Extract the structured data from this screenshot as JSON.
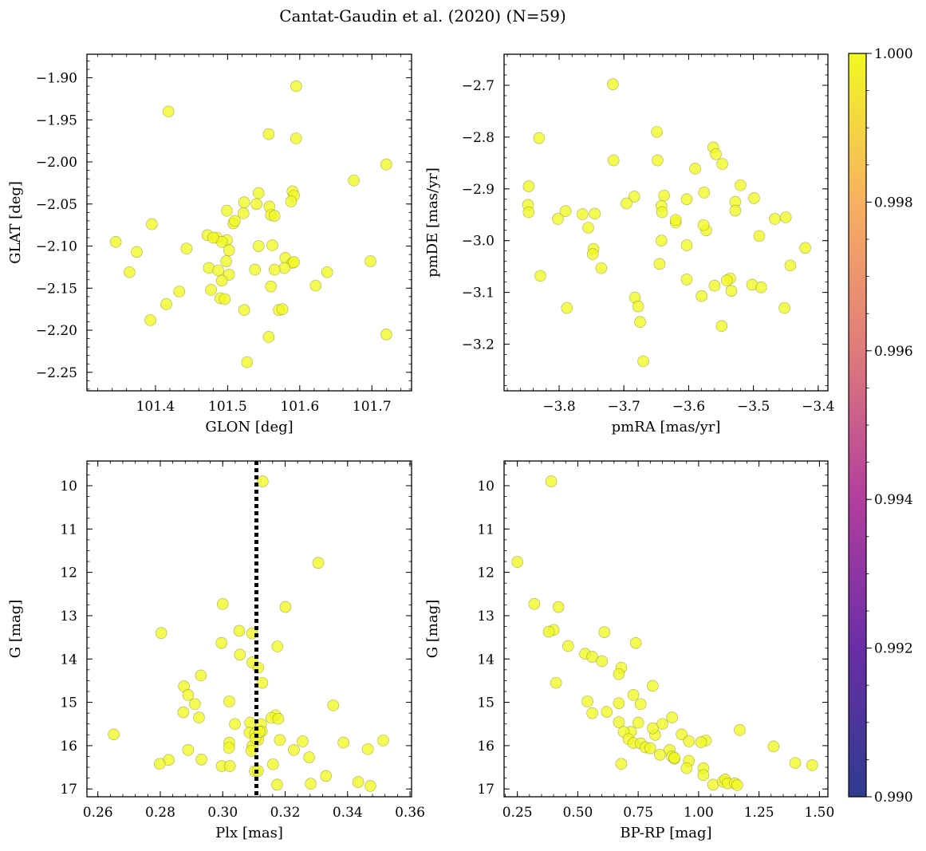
{
  "figure": {
    "title": "Cantat-Gaudin et al. (2020) (N=59)",
    "colorbar": {
      "min": 0.99,
      "max": 1.0,
      "ticks": [
        "0.990",
        "0.992",
        "0.994",
        "0.996",
        "0.998",
        "1.000"
      ],
      "tick_values": [
        0.99,
        0.992,
        0.994,
        0.996,
        0.998,
        1.0
      ],
      "colormap": "plasma"
    },
    "marker_color": "#f0f921"
  },
  "chart_data": [
    {
      "type": "scatter",
      "xlabel": "GLON [deg]",
      "ylabel": "GLAT [deg]",
      "xlim": [
        101.305,
        101.755
      ],
      "ylim": [
        -2.272,
        -1.872
      ],
      "inverted_y": false,
      "xticks": [
        101.4,
        101.5,
        101.6,
        101.7
      ],
      "xtick_labels": [
        "101.4",
        "101.5",
        "101.6",
        "101.7"
      ],
      "yticks": [
        -1.9,
        -1.95,
        -2.0,
        -2.05,
        -2.1,
        -2.15,
        -2.2,
        -2.25
      ],
      "ytick_labels": [
        "−1.90",
        "−1.95",
        "−2.00",
        "−2.05",
        "−2.10",
        "−2.15",
        "−2.20",
        "−2.25"
      ],
      "x": [
        101.595,
        101.418,
        101.557,
        101.595,
        101.675,
        101.72,
        101.59,
        101.592,
        101.543,
        101.523,
        101.558,
        101.56,
        101.588,
        101.565,
        101.499,
        101.522,
        101.508,
        101.395,
        101.499,
        101.58,
        101.59,
        101.374,
        101.472,
        101.485,
        101.502,
        101.543,
        101.562,
        101.443,
        101.579,
        101.592,
        101.698,
        101.498,
        101.474,
        101.364,
        101.487,
        101.502,
        101.538,
        101.565,
        101.571,
        101.638,
        101.492,
        101.56,
        101.622,
        101.477,
        101.433,
        101.49,
        101.496,
        101.415,
        101.576,
        101.523,
        101.393,
        101.72,
        101.557,
        101.527,
        101.345,
        101.492,
        101.48,
        101.51,
        101.54
      ],
      "y": [
        -1.91,
        -1.94,
        -1.967,
        -1.972,
        -2.022,
        -2.003,
        -2.035,
        -2.04,
        -2.037,
        -2.048,
        -2.053,
        -2.063,
        -2.047,
        -2.064,
        -2.058,
        -2.061,
        -2.073,
        -2.074,
        -2.093,
        -2.114,
        -2.12,
        -2.107,
        -2.087,
        -2.09,
        -2.105,
        -2.1,
        -2.099,
        -2.103,
        -2.126,
        -2.119,
        -2.118,
        -2.118,
        -2.126,
        -2.131,
        -2.129,
        -2.134,
        -2.128,
        -2.128,
        -2.176,
        -2.131,
        -2.141,
        -2.148,
        -2.147,
        -2.152,
        -2.154,
        -2.162,
        -2.163,
        -2.169,
        -2.175,
        -2.176,
        -2.188,
        -2.205,
        -2.208,
        -2.238,
        -2.095,
        -2.095,
        -2.09,
        -2.07,
        -2.05
      ]
    },
    {
      "type": "scatter",
      "xlabel": "pmRA [mas/yr]",
      "ylabel": "pmDE [mas/yr]",
      "xlim": [
        -3.885,
        -3.385
      ],
      "ylim": [
        -3.29,
        -2.64
      ],
      "inverted_y": false,
      "xticks": [
        -3.8,
        -3.7,
        -3.6,
        -3.5,
        -3.4
      ],
      "xtick_labels": [
        "−3.8",
        "−3.7",
        "−3.6",
        "−3.5",
        "−3.4"
      ],
      "yticks": [
        -2.7,
        -2.8,
        -2.9,
        -3.0,
        -3.1,
        -3.2
      ],
      "ytick_labels": [
        "−2.7",
        "−2.8",
        "−2.9",
        "−3.0",
        "−3.1",
        "−3.2"
      ],
      "x": [
        -3.717,
        -3.831,
        -3.649,
        -3.562,
        -3.558,
        -3.716,
        -3.648,
        -3.548,
        -3.52,
        -3.847,
        -3.684,
        -3.638,
        -3.576,
        -3.528,
        -3.499,
        -3.59,
        -3.848,
        -3.696,
        -3.642,
        -3.79,
        -3.847,
        -3.603,
        -3.528,
        -3.467,
        -3.573,
        -3.45,
        -3.641,
        -3.802,
        -3.755,
        -3.745,
        -3.62,
        -3.764,
        -3.642,
        -3.577,
        -3.491,
        -3.603,
        -3.747,
        -3.748,
        -3.735,
        -3.42,
        -3.443,
        -3.645,
        -3.829,
        -3.536,
        -3.603,
        -3.541,
        -3.56,
        -3.502,
        -3.488,
        -3.534,
        -3.58,
        -3.683,
        -3.788,
        -3.452,
        -3.678,
        -3.549,
        -3.675,
        -3.67,
        -3.62
      ],
      "y": [
        -2.698,
        -2.802,
        -2.79,
        -2.82,
        -2.833,
        -2.845,
        -2.845,
        -2.852,
        -2.893,
        -2.895,
        -2.915,
        -2.913,
        -2.907,
        -2.925,
        -2.918,
        -2.861,
        -2.931,
        -2.928,
        -2.933,
        -2.943,
        -2.945,
        -2.92,
        -2.942,
        -2.958,
        -2.98,
        -2.955,
        -2.945,
        -2.958,
        -2.975,
        -2.948,
        -2.965,
        -2.949,
        -3.0,
        -2.97,
        -2.991,
        -3.009,
        -3.016,
        -3.026,
        -3.053,
        -3.014,
        -3.048,
        -3.045,
        -3.068,
        -3.073,
        -3.075,
        -3.077,
        -3.087,
        -3.085,
        -3.09,
        -3.097,
        -3.107,
        -3.11,
        -3.13,
        -3.13,
        -3.127,
        -3.165,
        -3.157,
        -3.233,
        -2.96
      ]
    },
    {
      "type": "scatter",
      "xlabel": "Plx [mas]",
      "ylabel": "G [mag]",
      "xlim": [
        0.2565,
        0.3605
      ],
      "ylim": [
        17.18,
        9.43
      ],
      "inverted_y": true,
      "vline": {
        "x": 0.3108,
        "style": "dotted"
      },
      "xticks": [
        0.26,
        0.28,
        0.3,
        0.32,
        0.34,
        0.36
      ],
      "xtick_labels": [
        "0.26",
        "0.28",
        "0.30",
        "0.32",
        "0.34",
        "0.36"
      ],
      "yticks": [
        10,
        11,
        12,
        13,
        14,
        15,
        16,
        17
      ],
      "ytick_labels": [
        "10",
        "11",
        "12",
        "13",
        "14",
        "15",
        "16",
        "17"
      ],
      "x": [
        0.3128,
        0.3306,
        0.3,
        0.3201,
        0.2803,
        0.3053,
        0.3094,
        0.2996,
        0.3175,
        0.3055,
        0.3095,
        0.3114,
        0.3127,
        0.293,
        0.2876,
        0.3021,
        0.3354,
        0.2889,
        0.2911,
        0.2874,
        0.3169,
        0.2924,
        0.3088,
        0.3123,
        0.3039,
        0.3156,
        0.3178,
        0.3086,
        0.3125,
        0.3021,
        0.3104,
        0.3095,
        0.3183,
        0.3256,
        0.3114,
        0.3387,
        0.3514,
        0.2651,
        0.2889,
        0.302,
        0.3228,
        0.2997,
        0.3465,
        0.3277,
        0.2827,
        0.3103,
        0.2932,
        0.3092,
        0.2798,
        0.3023,
        0.3161,
        0.3113,
        0.3331,
        0.3282,
        0.3434,
        0.3174,
        0.3473,
        0.3105,
        0.3118
      ],
      "y": [
        9.9,
        11.78,
        12.73,
        12.8,
        13.4,
        13.35,
        13.41,
        13.63,
        13.71,
        13.9,
        14.08,
        14.2,
        14.55,
        14.38,
        14.63,
        14.98,
        15.07,
        14.83,
        15.04,
        15.23,
        15.3,
        15.35,
        15.47,
        15.5,
        15.5,
        15.36,
        15.38,
        15.7,
        15.67,
        15.93,
        15.72,
        16.01,
        15.87,
        15.9,
        15.86,
        15.93,
        15.88,
        15.74,
        16.1,
        16.05,
        16.1,
        16.47,
        16.08,
        16.27,
        16.33,
        16.59,
        16.32,
        16.12,
        16.42,
        16.47,
        16.43,
        16.58,
        16.7,
        16.88,
        16.84,
        16.9,
        16.93,
        15.83,
        15.68
      ]
    },
    {
      "type": "scatter",
      "xlabel": "BP-RP [mag]",
      "ylabel": "G [mag]",
      "xlim": [
        0.195,
        1.535
      ],
      "ylim": [
        17.18,
        9.43
      ],
      "inverted_y": true,
      "xticks": [
        0.25,
        0.5,
        0.75,
        1.0,
        1.25,
        1.5
      ],
      "xtick_labels": [
        "0.25",
        "0.50",
        "0.75",
        "1.00",
        "1.25",
        "1.50"
      ],
      "yticks": [
        10,
        11,
        12,
        13,
        14,
        15,
        16,
        17
      ],
      "ytick_labels": [
        "10",
        "11",
        "12",
        "13",
        "14",
        "15",
        "16",
        "17"
      ],
      "x": [
        0.39,
        0.25,
        0.32,
        0.42,
        0.4,
        0.38,
        0.61,
        0.74,
        0.46,
        0.53,
        0.56,
        0.6,
        0.68,
        0.67,
        0.41,
        0.81,
        0.54,
        0.73,
        0.67,
        0.76,
        0.56,
        0.62,
        0.89,
        0.85,
        0.75,
        0.67,
        0.82,
        0.72,
        0.69,
        0.81,
        0.93,
        0.96,
        0.71,
        1.03,
        1.01,
        0.73,
        0.76,
        0.78,
        0.8,
        1.17,
        1.31,
        0.84,
        0.88,
        0.89,
        0.9,
        0.96,
        1.02,
        0.95,
        1.4,
        1.47,
        1.06,
        1.02,
        1.1,
        1.11,
        1.12,
        1.15,
        1.16,
        0.68,
        0.9
      ],
      "y": [
        9.9,
        11.76,
        12.73,
        12.8,
        13.33,
        13.37,
        13.38,
        13.63,
        13.7,
        13.88,
        13.95,
        14.05,
        14.2,
        14.35,
        14.55,
        14.62,
        14.98,
        14.83,
        15.02,
        15.04,
        15.25,
        15.22,
        15.35,
        15.5,
        15.47,
        15.46,
        15.75,
        15.68,
        15.68,
        15.6,
        15.74,
        15.9,
        15.85,
        15.88,
        15.92,
        15.94,
        15.95,
        16.04,
        16.06,
        15.64,
        16.02,
        16.21,
        16.1,
        16.25,
        16.3,
        16.35,
        16.52,
        16.52,
        16.4,
        16.45,
        16.9,
        16.68,
        16.83,
        16.78,
        16.87,
        16.87,
        16.91,
        16.42,
        16.28
      ]
    }
  ]
}
